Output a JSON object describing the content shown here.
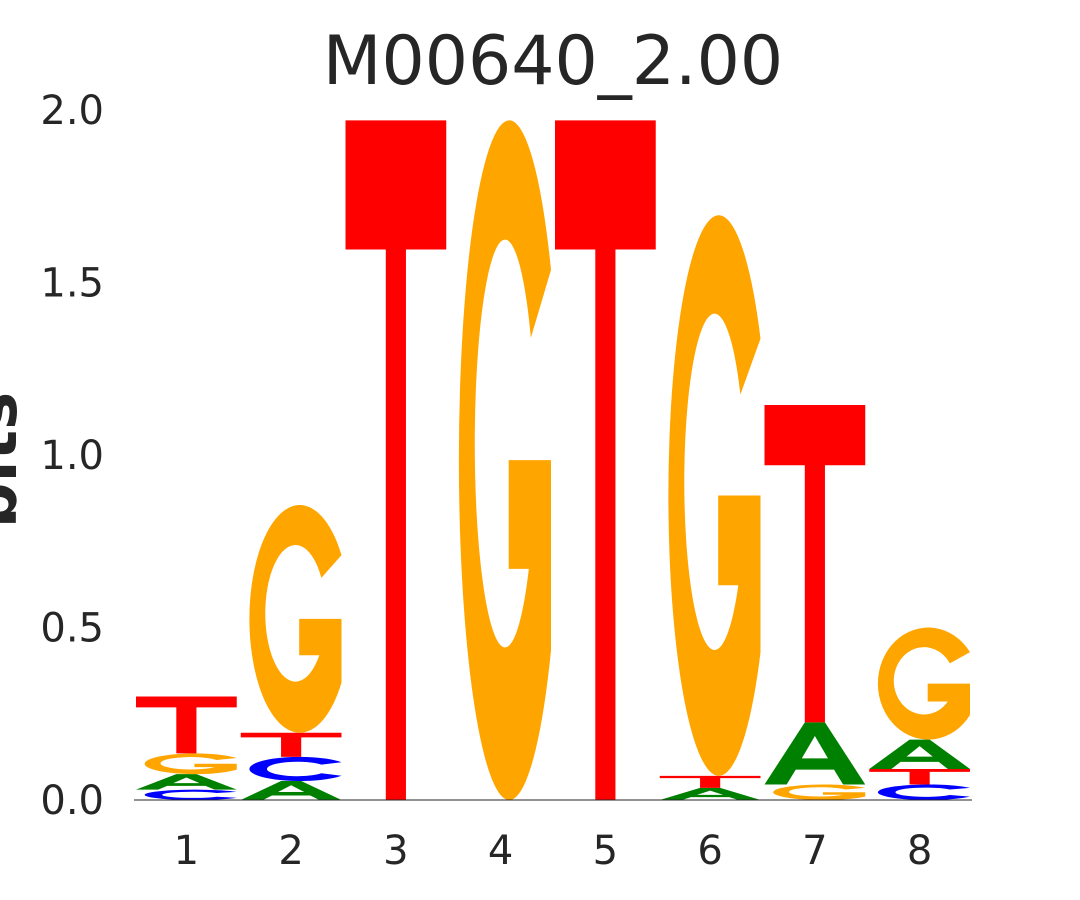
{
  "chart_data": {
    "type": "sequence-logo",
    "title": "M00640_2.00",
    "xlabel": "",
    "ylabel": "bits",
    "ylim": [
      0,
      2.0
    ],
    "yticks": [
      "0.0",
      "0.5",
      "1.0",
      "1.5",
      "2.0"
    ],
    "grid": false,
    "positions": [
      {
        "label": "1",
        "letters": [
          {
            "base": "C",
            "bits": 0.03
          },
          {
            "base": "A",
            "bits": 0.045
          },
          {
            "base": "G",
            "bits": 0.06
          },
          {
            "base": "T",
            "bits": 0.165
          }
        ]
      },
      {
        "label": "2",
        "letters": [
          {
            "base": "A",
            "bits": 0.055
          },
          {
            "base": "C",
            "bits": 0.07
          },
          {
            "base": "T",
            "bits": 0.07
          },
          {
            "base": "G",
            "bits": 0.66
          }
        ]
      },
      {
        "label": "3",
        "letters": [
          {
            "base": "T",
            "bits": 1.97
          }
        ]
      },
      {
        "label": "4",
        "letters": [
          {
            "base": "G",
            "bits": 1.97
          }
        ]
      },
      {
        "label": "5",
        "letters": [
          {
            "base": "T",
            "bits": 1.97
          }
        ]
      },
      {
        "label": "6",
        "letters": [
          {
            "base": "A",
            "bits": 0.035
          },
          {
            "base": "T",
            "bits": 0.035
          },
          {
            "base": "G",
            "bits": 1.625
          }
        ]
      },
      {
        "label": "7",
        "letters": [
          {
            "base": "G",
            "bits": 0.045
          },
          {
            "base": "A",
            "bits": 0.18
          },
          {
            "base": "T",
            "bits": 0.92
          }
        ]
      },
      {
        "label": "8",
        "letters": [
          {
            "base": "C",
            "bits": 0.045
          },
          {
            "base": "T",
            "bits": 0.045
          },
          {
            "base": "A",
            "bits": 0.085
          },
          {
            "base": "G",
            "bits": 0.325
          }
        ]
      }
    ],
    "colors": {
      "A": "#008000",
      "C": "#0000ff",
      "G": "#ffa500",
      "T": "#ff0000"
    }
  }
}
